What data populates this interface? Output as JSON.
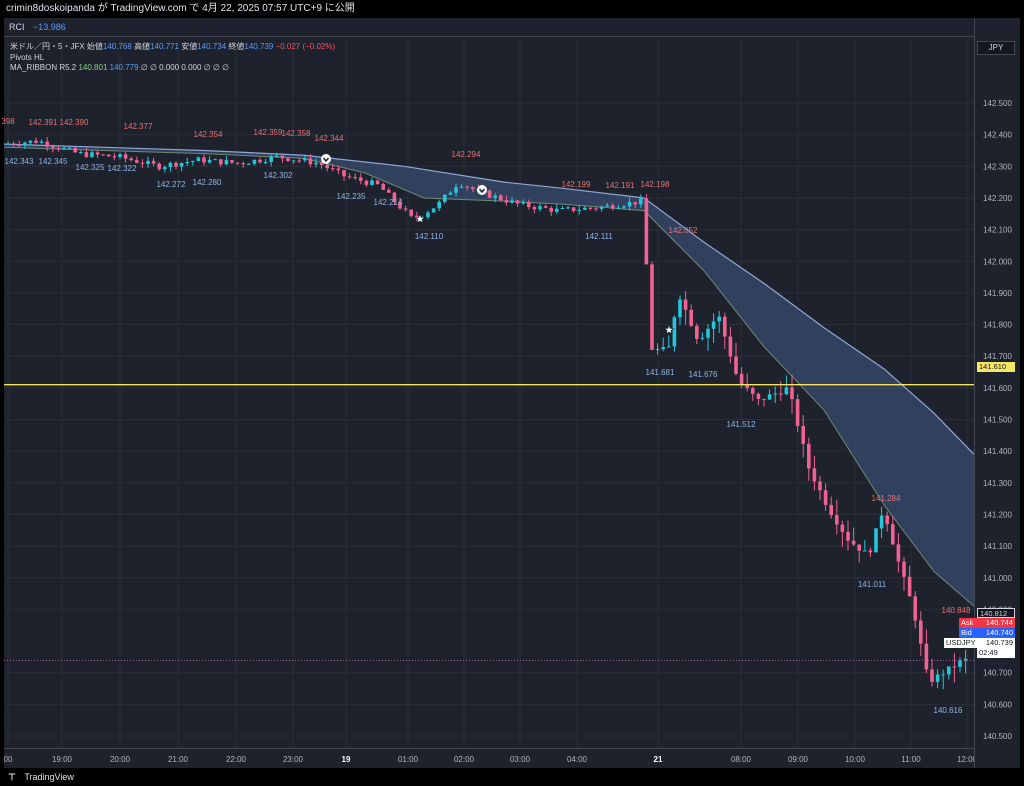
{
  "header": {
    "title": "crimin8doskoipanda が TradingView.com で 4月 22, 2025 07:57 UTC+9 に公開"
  },
  "rci": {
    "label": "RCI",
    "value": "−13.986"
  },
  "legend": {
    "symbol": "米ドル／円・5・JFX",
    "open_label": "始値",
    "open": "140.768",
    "high_label": "高値",
    "high": "140.771",
    "low_label": "安値",
    "low": "140.734",
    "close_label": "終値",
    "close": "140.739",
    "change": "−0.027 (−0.02%)",
    "pivots": "Pivots HL",
    "ribbon_name": "MA_RIBBON R5.2",
    "ribbon_v1": "140.801",
    "ribbon_v2": "140.779",
    "ribbon_rest": "∅ ∅ 0.000 0.000 ∅ ∅ ∅"
  },
  "currency": "JPY",
  "yaxis": {
    "ticks": [
      "142.500",
      "142.400",
      "142.300",
      "142.200",
      "142.100",
      "142.000",
      "141.900",
      "141.800",
      "141.700",
      "141.600",
      "141.500",
      "141.400",
      "141.300",
      "141.200",
      "141.100",
      "141.000",
      "140.900",
      "140.700",
      "140.600",
      "140.500"
    ]
  },
  "price_tags": {
    "hline": "141.610",
    "last": "140.812",
    "ask_label": "Ask",
    "ask": "140.744",
    "bid_label": "Bid",
    "bid": "140.740",
    "symbol": "USDJPY",
    "symbol_price": "140.739",
    "countdown": "02:49"
  },
  "xaxis": {
    "ticks": [
      "00",
      "19:00",
      "20:00",
      "21:00",
      "22:00",
      "23:00",
      "19",
      "01:00",
      "02:00",
      "03:00",
      "04:00",
      "21",
      "08:00",
      "09:00",
      "10:00",
      "11:00",
      "12:00"
    ]
  },
  "pivots_high": [
    "398",
    "142.391",
    "142.390",
    "142.377",
    "142.354",
    "142.359",
    "142.358",
    "142.344",
    "142.294",
    "142.199",
    "142.191",
    "142.198",
    "142.052",
    "141.284",
    "140.848"
  ],
  "pivots_low": [
    "142.343",
    "142.345",
    "142.325",
    "142.322",
    "142.272",
    "142.280",
    "142.302",
    "142.235",
    "142.214",
    "142.110",
    "142.111",
    "141.681",
    "141.676",
    "141.512",
    "141.011",
    "140.616"
  ],
  "colors": {
    "bg": "#1e222d",
    "up": "#26c6da",
    "down": "#f06292",
    "ribbon_fill": "#3f5a85",
    "ribbon_line": "#8fa7d6",
    "hline": "#f5e663",
    "pivot_high": "#e57373",
    "pivot_low": "#90b4e8"
  },
  "footer": {
    "brand": "TradingView"
  }
}
